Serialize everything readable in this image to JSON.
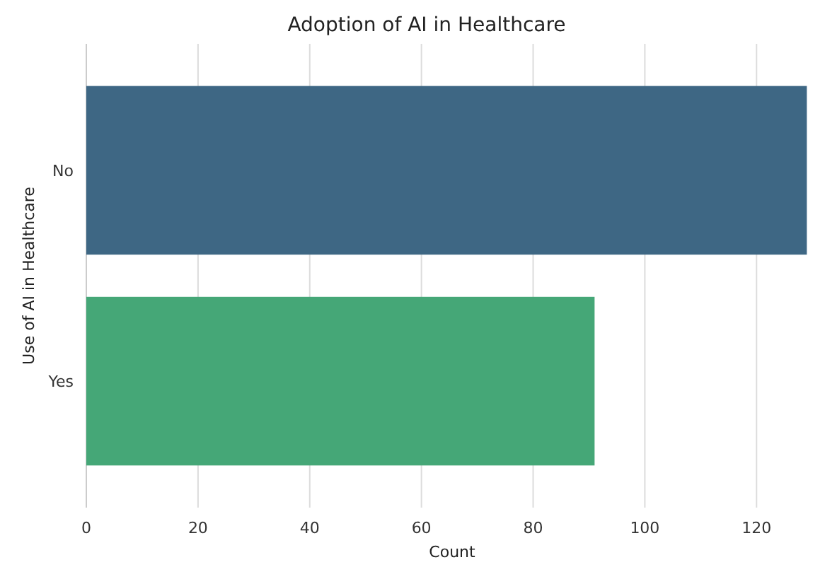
{
  "chart_data": {
    "type": "bar",
    "orientation": "horizontal",
    "title": "Adoption of AI in Healthcare",
    "xlabel": "Count",
    "ylabel": "Use of AI in Healthcare",
    "categories": [
      "No",
      "Yes"
    ],
    "series": [
      {
        "colors": [
          "#3e6784",
          "#45a777"
        ],
        "values": [
          129,
          91
        ]
      }
    ],
    "xlim": [
      0,
      132
    ],
    "xticks": [
      0,
      20,
      40,
      60,
      80,
      100,
      120
    ],
    "grid": "x"
  }
}
